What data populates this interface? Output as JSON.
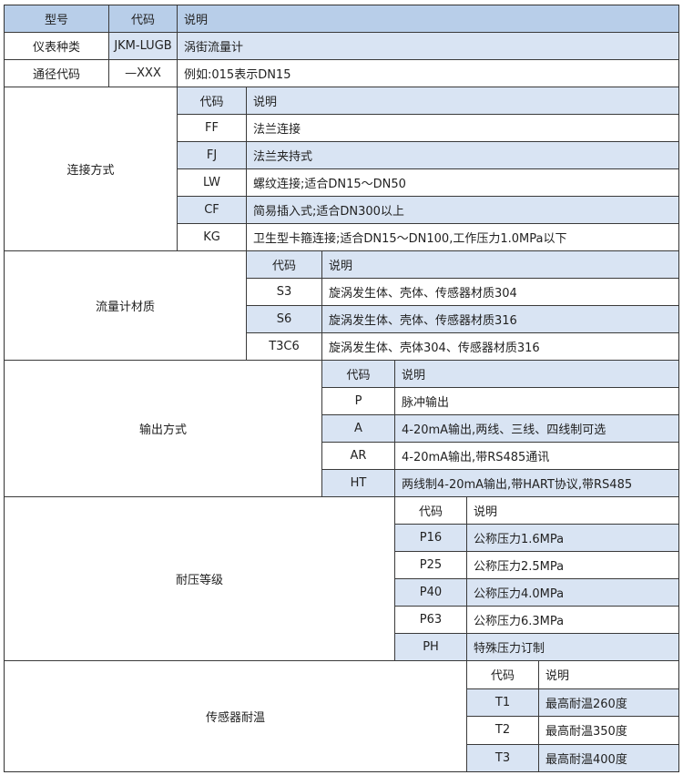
{
  "colors": {
    "header": "#b8cee9",
    "stripe": "#d9e4f3",
    "border": "#3a3a3a"
  },
  "top": {
    "header": [
      "型号",
      "代码",
      "说明"
    ],
    "rows": [
      [
        "仪表种类",
        "JKM-LUGB",
        "涡街流量计"
      ],
      [
        "通径代码",
        "—XXX",
        "例如:015表示DN15"
      ]
    ]
  },
  "sections": [
    {
      "label": "连接方式",
      "header": [
        "代码",
        "说明"
      ],
      "header_striped": true,
      "rows": [
        [
          "FF",
          "法兰连接"
        ],
        [
          "FJ",
          "法兰夹持式"
        ],
        [
          "LW",
          "螺纹连接;适合DN15～DN50"
        ],
        [
          "CF",
          "简易插入式;适合DN300以上"
        ],
        [
          "KG",
          "卫生型卡箍连接;适合DN15～DN100,工作压力1.0MPa以下"
        ]
      ]
    },
    {
      "label": "流量计材质",
      "header": [
        "代码",
        "说明"
      ],
      "header_striped": true,
      "rows": [
        [
          "S3",
          "旋涡发生体、壳体、传感器材质304"
        ],
        [
          "S6",
          "旋涡发生体、壳体、传感器材质316"
        ],
        [
          "T3C6",
          "旋涡发生体、壳体304、传感器材质316"
        ]
      ]
    },
    {
      "label": "输出方式",
      "header": [
        "代码",
        "说明"
      ],
      "header_striped": true,
      "rows": [
        [
          "P",
          "脉冲输出"
        ],
        [
          "A",
          "4-20mA输出,两线、三线、四线制可选"
        ],
        [
          "AR",
          "4-20mA输出,带RS485通讯"
        ],
        [
          "HT",
          "两线制4-20mA输出,带HART协议,带RS485"
        ]
      ]
    },
    {
      "label": "耐压等级",
      "header": [
        "代码",
        "说明"
      ],
      "header_striped": false,
      "rows": [
        [
          "P16",
          "公称压力1.6MPa"
        ],
        [
          "P25",
          "公称压力2.5MPa"
        ],
        [
          "P40",
          "公称压力4.0MPa"
        ],
        [
          "P63",
          "公称压力6.3MPa"
        ],
        [
          "PH",
          "特殊压力订制"
        ]
      ]
    },
    {
      "label": "传感器耐温",
      "header": [
        "代码",
        "说明"
      ],
      "header_striped": false,
      "rows": [
        [
          "T1",
          "最高耐温260度"
        ],
        [
          "T2",
          "最高耐温350度"
        ],
        [
          "T3",
          "最高耐温400度"
        ]
      ]
    }
  ]
}
